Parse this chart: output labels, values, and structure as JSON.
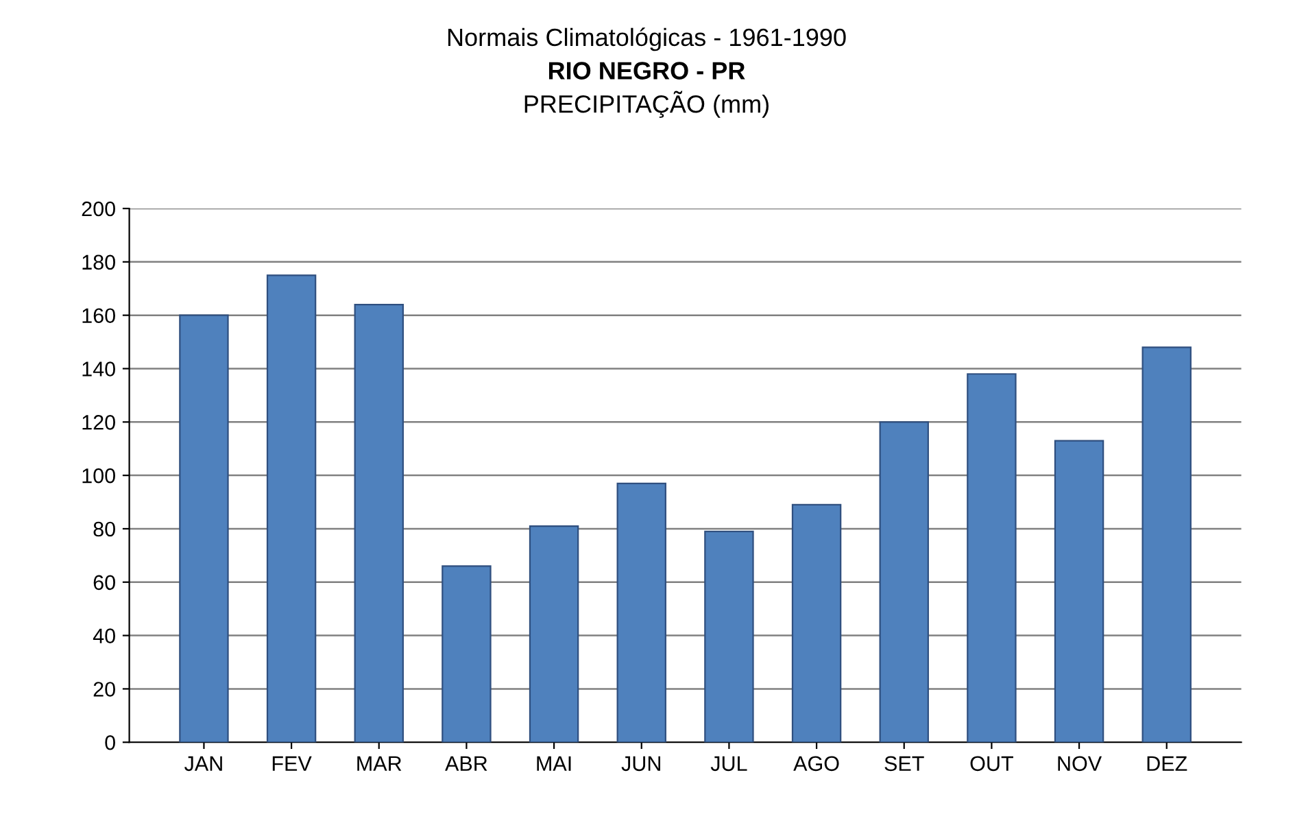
{
  "chart_data": {
    "type": "bar",
    "title": "Normais Climatológicas - 1961-1990",
    "subtitle": "RIO NEGRO - PR",
    "annotations": [
      "PRECIPITAÇÃO (mm)"
    ],
    "categories": [
      "JAN",
      "FEV",
      "MAR",
      "ABR",
      "MAI",
      "JUN",
      "JUL",
      "AGO",
      "SET",
      "OUT",
      "NOV",
      "DEZ"
    ],
    "values": [
      160,
      175,
      164,
      66,
      81,
      97,
      79,
      89,
      120,
      138,
      113,
      148
    ],
    "color": "#4f81bd",
    "ylim": [
      0,
      200
    ],
    "yticks": [
      0,
      20,
      40,
      60,
      80,
      100,
      120,
      140,
      160,
      180,
      200
    ],
    "grid": "y",
    "legend": false
  }
}
